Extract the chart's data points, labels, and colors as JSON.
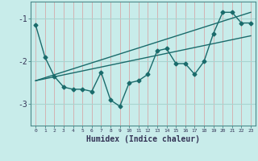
{
  "xlabel": "Humidex (Indice chaleur)",
  "xlim": [
    -0.5,
    23.5
  ],
  "ylim": [
    -3.5,
    -0.6
  ],
  "yticks": [
    -3,
    -2,
    -1
  ],
  "xticks": [
    0,
    1,
    2,
    3,
    4,
    5,
    6,
    7,
    8,
    9,
    10,
    11,
    12,
    13,
    14,
    15,
    16,
    17,
    18,
    19,
    20,
    21,
    22,
    23
  ],
  "bg_color": "#c8ecea",
  "line_color": "#1a6b6b",
  "vgrid_color": "#d4aaaa",
  "hgrid_color": "#a8d4d0",
  "series1_x": [
    0,
    1,
    2,
    3,
    4,
    5,
    6,
    7,
    8,
    9,
    10,
    11,
    12,
    13,
    14,
    15,
    16,
    17,
    18,
    19,
    20,
    21,
    22,
    23
  ],
  "series1_y": [
    -1.15,
    -1.9,
    -2.35,
    -2.6,
    -2.65,
    -2.65,
    -2.7,
    -2.25,
    -2.9,
    -3.05,
    -2.5,
    -2.45,
    -2.3,
    -1.75,
    -1.7,
    -2.05,
    -2.05,
    -2.3,
    -2.0,
    -1.35,
    -0.85,
    -0.85,
    -1.1,
    -1.1
  ],
  "series2_x": [
    0,
    23
  ],
  "series2_y": [
    -2.45,
    -0.85
  ],
  "series3_x": [
    0,
    23
  ],
  "series3_y": [
    -2.45,
    -1.4
  ]
}
